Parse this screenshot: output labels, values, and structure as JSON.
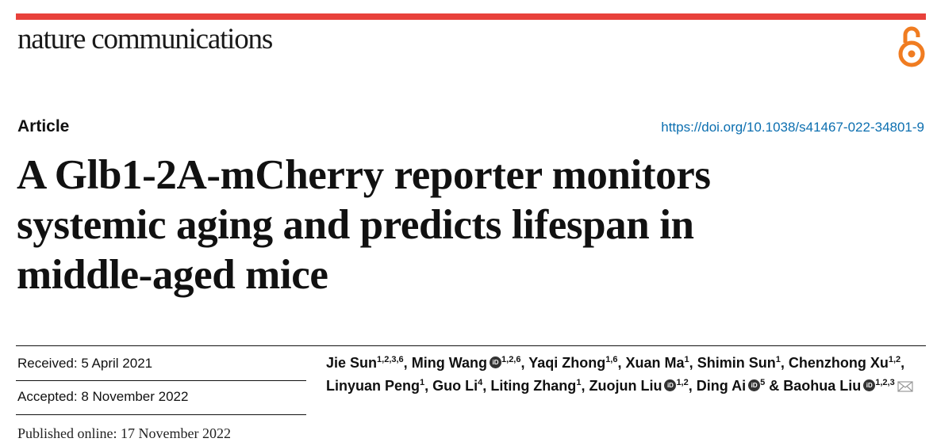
{
  "header": {
    "journal": "nature communications",
    "open_access_color": "#f07c21",
    "accent_color": "#e8413b"
  },
  "article": {
    "type": "Article",
    "doi": "https://doi.org/10.1038/s41467-022-34801-9",
    "title_lines": [
      "A Glb1-2A-mCherry reporter monitors",
      "systemic aging and predicts lifespan in",
      "middle-aged mice"
    ]
  },
  "dates": {
    "received": "Received: 5 April 2021",
    "accepted": "Accepted: 8 November 2022",
    "published": "Published online: 17 November 2022"
  },
  "authors": [
    {
      "name": "Jie Sun",
      "aff": "1,2,3,6",
      "orcid": false,
      "sep": ","
    },
    {
      "name": "Ming Wang",
      "aff": "1,2,6",
      "orcid": true,
      "sep": ","
    },
    {
      "name": "Yaqi Zhong",
      "aff": "1,6",
      "orcid": false,
      "sep": ","
    },
    {
      "name": "Xuan Ma",
      "aff": "1",
      "orcid": false,
      "sep": ","
    },
    {
      "name": "Shimin Sun",
      "aff": "1",
      "orcid": false,
      "sep": ","
    },
    {
      "name": "Chenzhong Xu",
      "aff": "1,2",
      "orcid": false,
      "sep": ","
    },
    {
      "name": "Linyuan Peng",
      "aff": "1",
      "orcid": false,
      "sep": ","
    },
    {
      "name": "Guo Li",
      "aff": "4",
      "orcid": false,
      "sep": ","
    },
    {
      "name": "Liting Zhang",
      "aff": "1",
      "orcid": false,
      "sep": ","
    },
    {
      "name": "Zuojun Liu",
      "aff": "1,2",
      "orcid": true,
      "sep": ","
    },
    {
      "name": "Ding Ai",
      "aff": "5",
      "orcid": true,
      "sep": " &"
    },
    {
      "name": "Baohua Liu",
      "aff": "1,2,3",
      "orcid": true,
      "sep": "",
      "corresponding": true
    }
  ]
}
